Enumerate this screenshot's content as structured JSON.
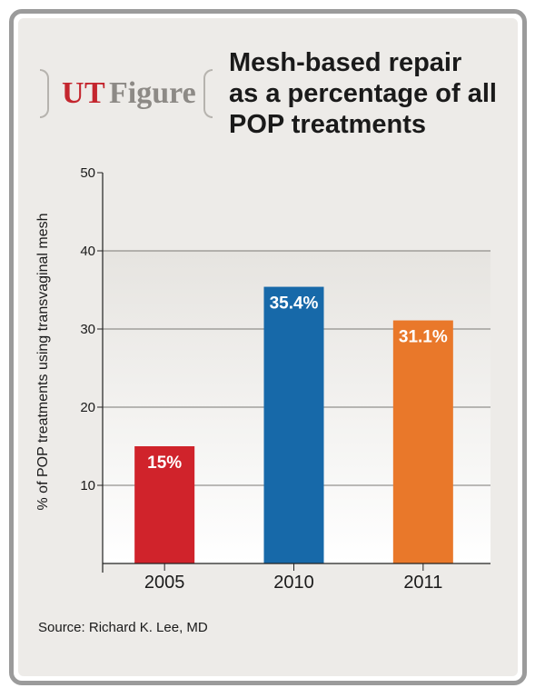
{
  "badge": {
    "ut": "UT",
    "figure": "Figure"
  },
  "title_lines": [
    "Mesh-based repair",
    "as a percentage of all",
    "POP treatments"
  ],
  "source": "Source: Richard K. Lee, MD",
  "colors": {
    "2005": "#d0232b",
    "2010": "#1769a9",
    "2011": "#e9782a"
  },
  "chart_data": {
    "type": "bar",
    "title": "Mesh-based repair as a percentage of all POP treatments",
    "xlabel": "",
    "ylabel": "% of POP treatments using transvaginal mesh",
    "ylim": [
      0,
      50
    ],
    "yticks": [
      10,
      20,
      30,
      40,
      50
    ],
    "categories": [
      "2005",
      "2010",
      "2011"
    ],
    "values": [
      15,
      35.4,
      31.1
    ],
    "data_labels": [
      "15%",
      "35.4%",
      "31.1%"
    ],
    "grid": true
  }
}
